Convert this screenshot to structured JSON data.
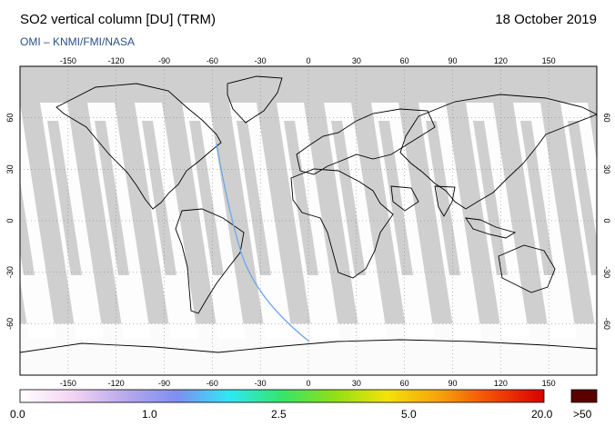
{
  "header": {
    "title": "SO2 vertical column [DU] (TRM)",
    "date": "18 October 2019",
    "credit": "OMI  –  KNMI/FMI/NASA"
  },
  "map": {
    "projection": "equirectangular",
    "lon_ticks": [
      "-150",
      "-120",
      "-90",
      "-60",
      "-30",
      "0",
      "30",
      "60",
      "90",
      "120",
      "150"
    ],
    "lat_ticks": [
      "60",
      "30",
      "0",
      "-30",
      "-60"
    ],
    "colors": {
      "no_data": "#cfcfcf",
      "low_value": "#ffffff",
      "land_outline": "#000000",
      "cloud_gray": "#a9a9a9",
      "track": "#6fa8e8"
    }
  },
  "colorbar": {
    "tick_labels": [
      "0.0",
      "1.0",
      "2.5",
      "5.0",
      "20.0"
    ],
    "overflow_label": ">50",
    "overflow_color": "#5a0000",
    "gradient": [
      "#ffffff",
      "#f3d4f2",
      "#b8a9ec",
      "#7f8ef0",
      "#2ee8f5",
      "#35e56a",
      "#8fe015",
      "#f2e20a",
      "#f7a20b",
      "#f24a07",
      "#d90000"
    ]
  }
}
